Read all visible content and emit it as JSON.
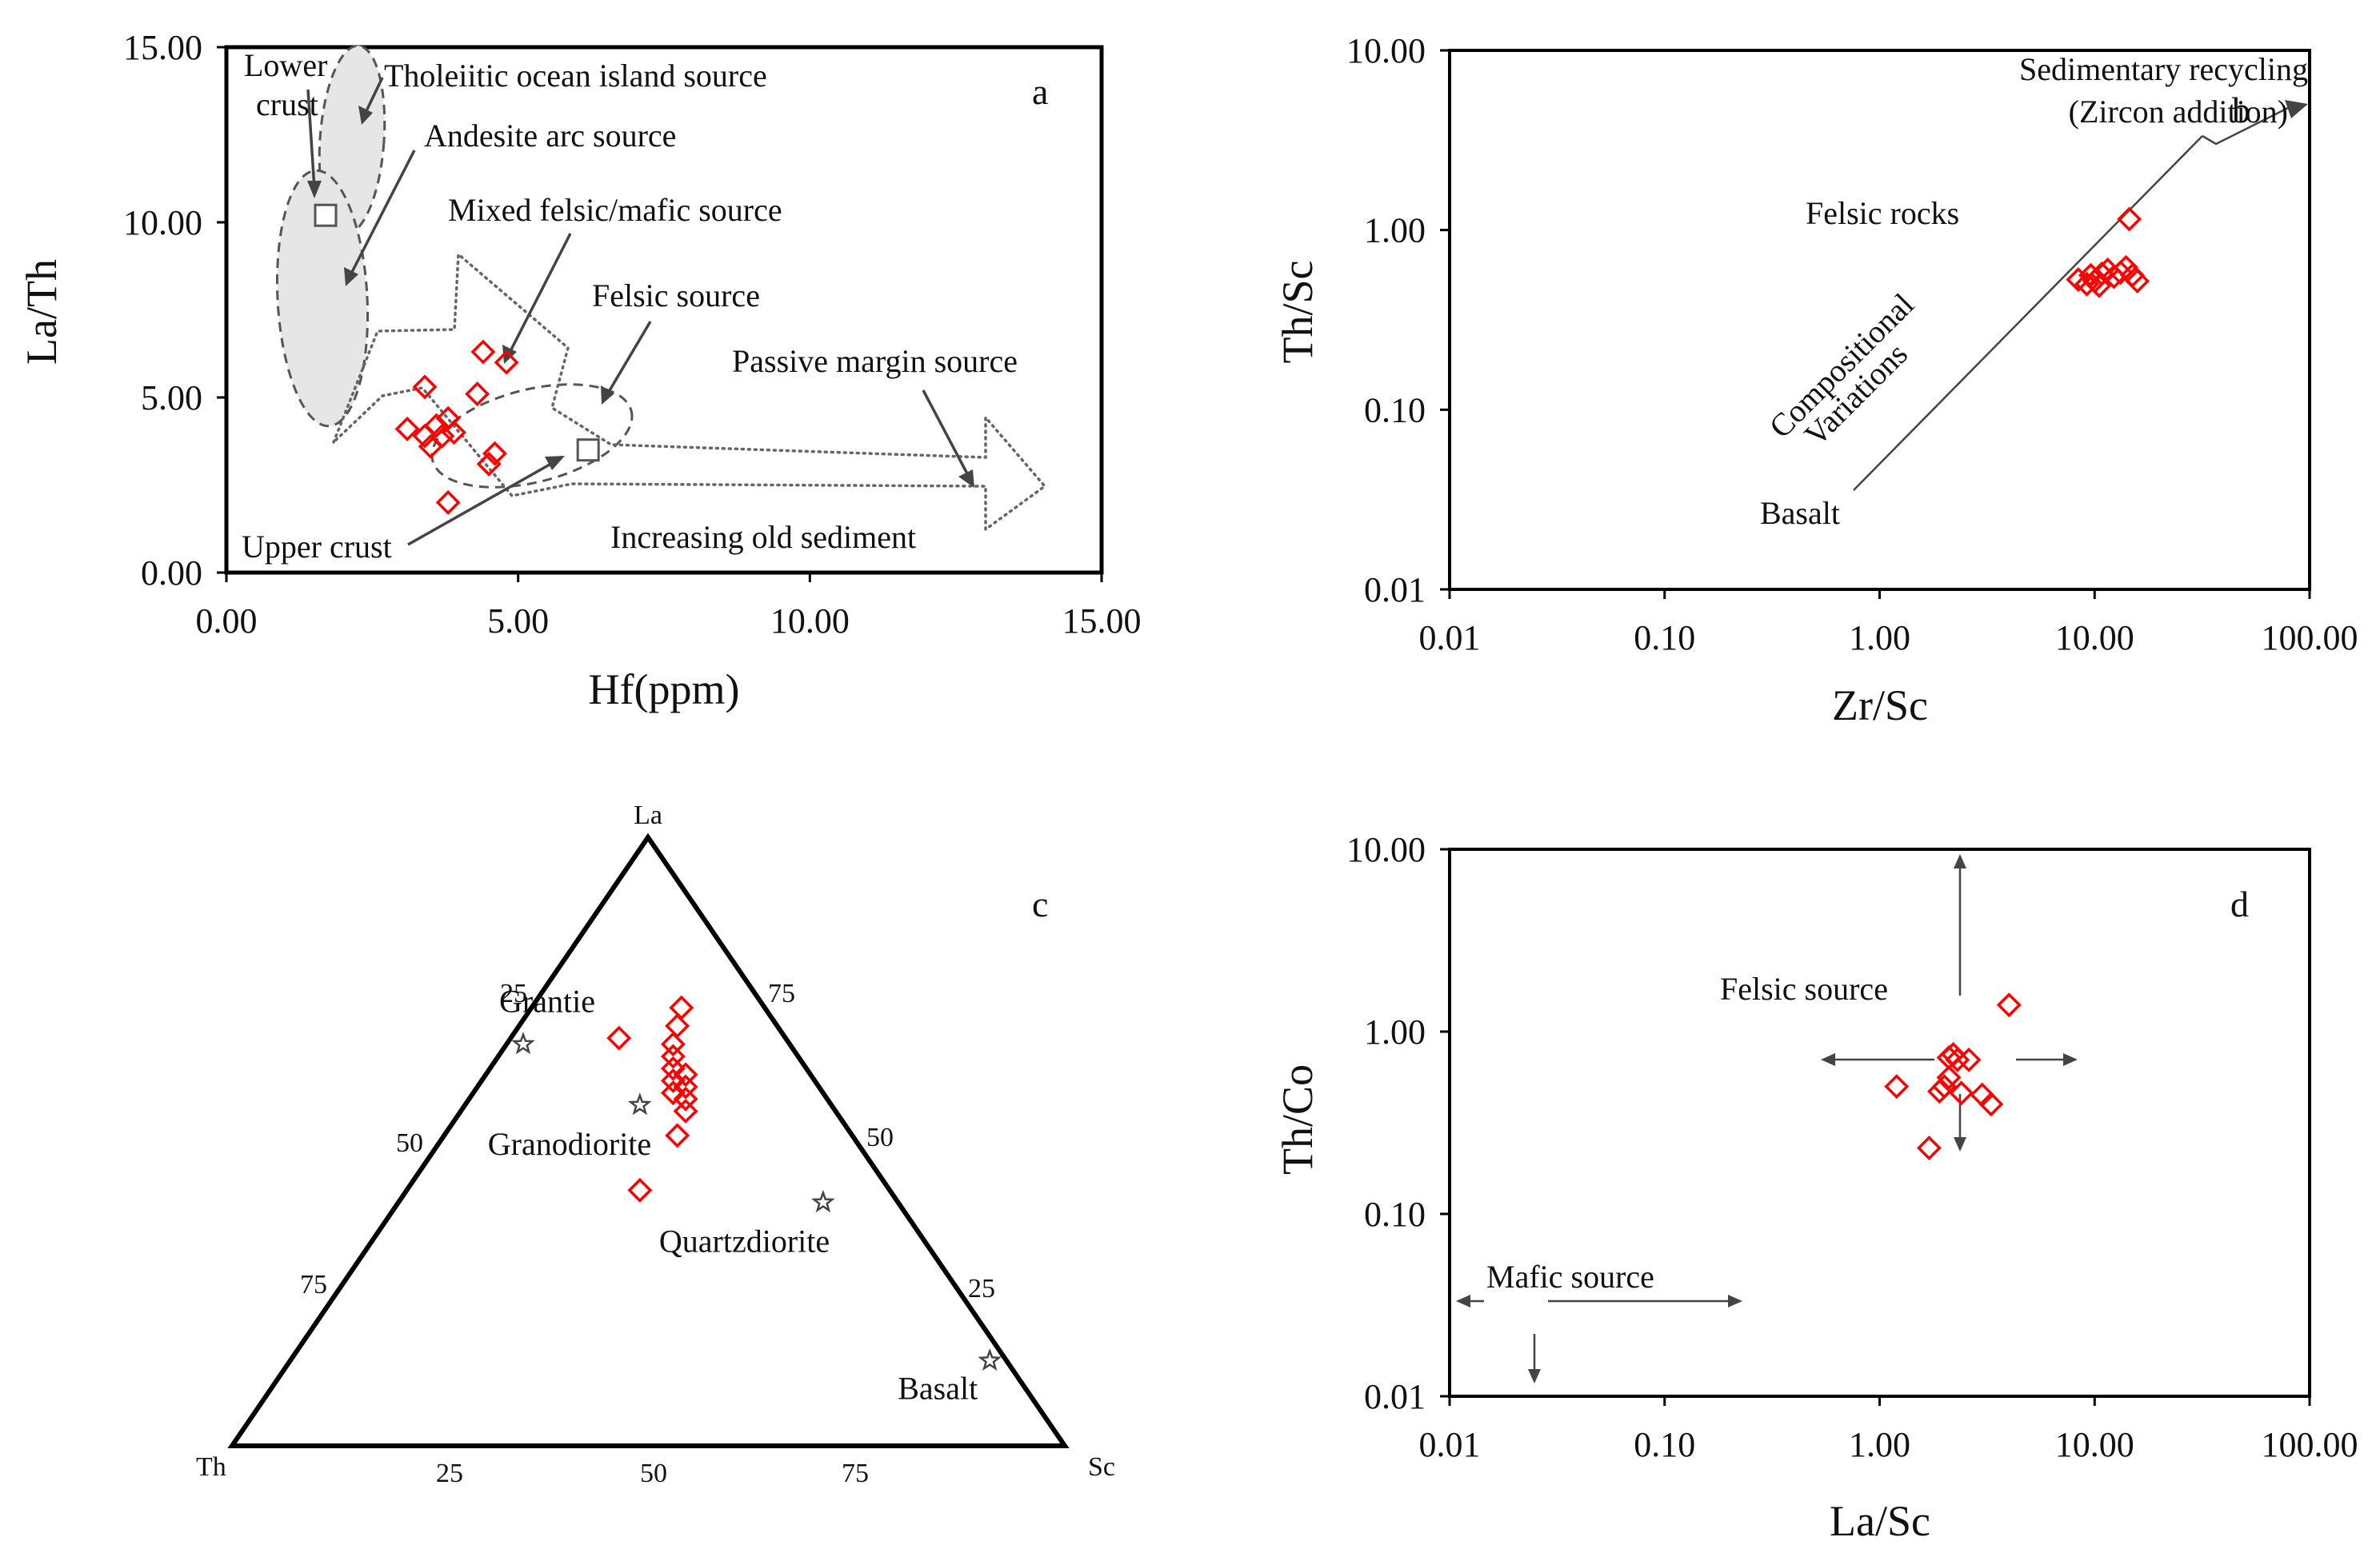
{
  "chart_data": [
    {
      "panel": "a",
      "type": "scatter",
      "xlabel": "Hf(ppm)",
      "ylabel": "La/Th",
      "xlim": [
        0,
        15
      ],
      "ylim": [
        0,
        15
      ],
      "xticks": [
        "0.00",
        "5.00",
        "10.00",
        "15.00"
      ],
      "yticks": [
        "0.00",
        "5.00",
        "10.00",
        "15.00"
      ],
      "grid": false,
      "points": [
        {
          "x": 3.1,
          "y": 4.1
        },
        {
          "x": 3.4,
          "y": 3.9
        },
        {
          "x": 3.5,
          "y": 3.6
        },
        {
          "x": 3.6,
          "y": 4.2
        },
        {
          "x": 3.7,
          "y": 3.9
        },
        {
          "x": 3.8,
          "y": 4.4
        },
        {
          "x": 3.9,
          "y": 4.0
        },
        {
          "x": 3.4,
          "y": 5.3
        },
        {
          "x": 3.8,
          "y": 2.0
        },
        {
          "x": 4.3,
          "y": 5.1
        },
        {
          "x": 4.4,
          "y": 6.3
        },
        {
          "x": 4.5,
          "y": 3.1
        },
        {
          "x": 4.6,
          "y": 3.4
        },
        {
          "x": 4.8,
          "y": 6.0
        }
      ],
      "reference_points": [
        {
          "label": "Lower crust",
          "x": 1.7,
          "y": 10.2
        },
        {
          "label": "Upper crust",
          "x": 6.2,
          "y": 3.5
        }
      ],
      "annotations": [
        "Lower",
        "crust",
        "Tholeiitic ocean island source",
        "Andesite arc source",
        "Mixed felsic/mafic source",
        "Felsic source",
        "Passive margin source",
        "Upper crust",
        "Increasing old sediment"
      ]
    },
    {
      "panel": "b",
      "type": "scatter",
      "xscale": "log",
      "yscale": "log",
      "xlabel": "Zr/Sc",
      "ylabel": "Th/Sc",
      "xlim": [
        0.01,
        100
      ],
      "ylim": [
        0.01,
        10
      ],
      "xticks": [
        "0.01",
        "0.10",
        "1.00",
        "10.00",
        "100.00"
      ],
      "yticks": [
        "0.01",
        "0.10",
        "1.00",
        "10.00"
      ],
      "grid": false,
      "points": [
        {
          "x": 8.4,
          "y": 0.53
        },
        {
          "x": 9.2,
          "y": 0.5
        },
        {
          "x": 9.6,
          "y": 0.56
        },
        {
          "x": 10.0,
          "y": 0.52
        },
        {
          "x": 10.5,
          "y": 0.49
        },
        {
          "x": 10.8,
          "y": 0.57
        },
        {
          "x": 11.5,
          "y": 0.6
        },
        {
          "x": 12.3,
          "y": 0.55
        },
        {
          "x": 13.2,
          "y": 0.58
        },
        {
          "x": 14.0,
          "y": 0.62
        },
        {
          "x": 15.0,
          "y": 0.56
        },
        {
          "x": 15.8,
          "y": 0.52
        },
        {
          "x": 14.5,
          "y": 1.15
        }
      ],
      "annotations": [
        "Sedimentary recycling",
        "(Zircon addition)",
        "Felsic rocks",
        "Compositional",
        "Variations",
        "Basalt"
      ]
    },
    {
      "panel": "c",
      "type": "ternary",
      "vertices": {
        "top": "La",
        "left": "Th",
        "right": "Sc"
      },
      "tick_labels": {
        "left_edge": [
          "25",
          "50",
          "75"
        ],
        "right_edge": [
          "75",
          "50",
          "25"
        ],
        "bottom_edge": [
          "25",
          "50",
          "75"
        ]
      },
      "points": [
        {
          "la": 72,
          "th": 10,
          "sc": 18
        },
        {
          "la": 69,
          "th": 12,
          "sc": 19
        },
        {
          "la": 66,
          "th": 14,
          "sc": 20
        },
        {
          "la": 64,
          "th": 15,
          "sc": 21
        },
        {
          "la": 62,
          "th": 16,
          "sc": 22
        },
        {
          "la": 60,
          "th": 17,
          "sc": 23
        },
        {
          "la": 58,
          "th": 18,
          "sc": 24
        },
        {
          "la": 61,
          "th": 15,
          "sc": 24
        },
        {
          "la": 59,
          "th": 16,
          "sc": 25
        },
        {
          "la": 57,
          "th": 17,
          "sc": 26
        },
        {
          "la": 55,
          "th": 18,
          "sc": 27
        },
        {
          "la": 51,
          "th": 21,
          "sc": 28
        },
        {
          "la": 67,
          "th": 20,
          "sc": 13
        },
        {
          "la": 42,
          "th": 30,
          "sc": 28
        }
      ],
      "reference_points": [
        {
          "label": "Grantie",
          "la": 66,
          "th": 32,
          "sc": 2
        },
        {
          "label": "Granodiorite",
          "la": 56,
          "th": 23,
          "sc": 21
        },
        {
          "label": "Quartzdiorite",
          "la": 40,
          "th": 9,
          "sc": 51
        },
        {
          "label": "Basalt",
          "la": 14,
          "th": 2,
          "sc": 84
        }
      ]
    },
    {
      "panel": "d",
      "type": "scatter",
      "xscale": "log",
      "yscale": "log",
      "xlabel": "La/Sc",
      "ylabel": "Th/Co",
      "xlim": [
        0.01,
        100
      ],
      "ylim": [
        0.01,
        10
      ],
      "xticks": [
        "0.01",
        "0.10",
        "1.00",
        "10.00",
        "100.00"
      ],
      "yticks": [
        "0.01",
        "0.10",
        "1.00",
        "10.00"
      ],
      "grid": false,
      "points": [
        {
          "x": 1.2,
          "y": 0.5
        },
        {
          "x": 1.7,
          "y": 0.23
        },
        {
          "x": 1.9,
          "y": 0.47
        },
        {
          "x": 2.0,
          "y": 0.5
        },
        {
          "x": 2.1,
          "y": 0.56
        },
        {
          "x": 2.1,
          "y": 0.72
        },
        {
          "x": 2.2,
          "y": 0.75
        },
        {
          "x": 2.3,
          "y": 0.7
        },
        {
          "x": 2.4,
          "y": 0.46
        },
        {
          "x": 2.6,
          "y": 0.7
        },
        {
          "x": 3.0,
          "y": 0.45
        },
        {
          "x": 3.3,
          "y": 0.4
        },
        {
          "x": 4.0,
          "y": 1.4
        }
      ],
      "annotations": [
        "Felsic source",
        "Mafic source"
      ]
    }
  ],
  "labels": {
    "a": "a",
    "b": "b",
    "c": "c",
    "d": "d"
  }
}
